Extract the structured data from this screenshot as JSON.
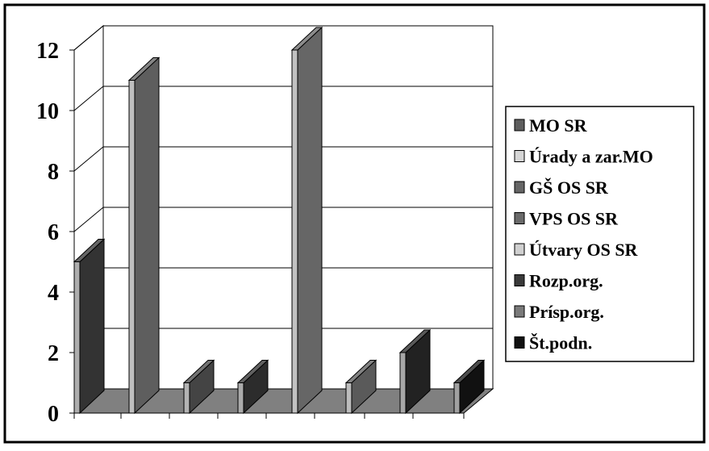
{
  "chart_data": {
    "type": "bar",
    "title": "",
    "xlabel": "",
    "ylabel": "",
    "ylim": [
      0,
      12
    ],
    "yticks": [
      "0",
      "2",
      "4",
      "6",
      "8",
      "10",
      "12"
    ],
    "grid": true,
    "legend_position": "right",
    "series": [
      {
        "name": "MO SR",
        "value": 5,
        "color": "#333333"
      },
      {
        "name": "Úrady a zar.MO",
        "value": 11,
        "color": "#5e5e5e"
      },
      {
        "name": "GŠ OS SR",
        "value": 1,
        "color": "#444444"
      },
      {
        "name": "VPS OS SR",
        "value": 1,
        "color": "#2c2c2c"
      },
      {
        "name": "Útvary OS SR",
        "value": 12,
        "color": "#666666"
      },
      {
        "name": "Rozp.org.",
        "value": 1,
        "color": "#5a5a5a"
      },
      {
        "name": "Prísp.org.",
        "value": 2,
        "color": "#222222"
      },
      {
        "name": "Št.podn.",
        "value": 1,
        "color": "#111111"
      }
    ],
    "legend": [
      {
        "label": "MO SR",
        "color": "#5e5e5e"
      },
      {
        "label": "Úrady a zar.MO",
        "color": "#d6d6d6"
      },
      {
        "label": "GŠ OS SR",
        "color": "#666666"
      },
      {
        "label": "VPS OS SR",
        "color": "#6a6a6a"
      },
      {
        "label": "Útvary OS SR",
        "color": "#d0d0d0"
      },
      {
        "label": "Rozp.org.",
        "color": "#3a3a3a"
      },
      {
        "label": "Prísp.org.",
        "color": "#7a7a7a"
      },
      {
        "label": "Št.podn.",
        "color": "#111111"
      }
    ]
  }
}
